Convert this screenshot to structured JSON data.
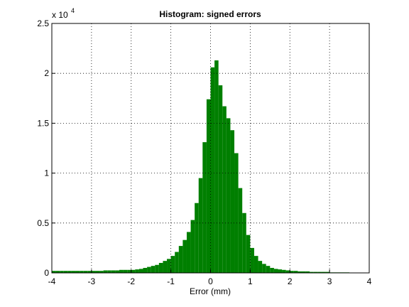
{
  "chart_data": {
    "type": "histogram",
    "title": "Histogram: signed errors",
    "x_label": "Error (mm)",
    "y_multiplier": {
      "text": "x 10",
      "exponent": "4"
    },
    "color": "#007f00",
    "grid": true,
    "xlim": [
      -4,
      4
    ],
    "xticks": [
      -4,
      -3,
      -2,
      -1,
      0,
      1,
      2,
      3,
      4
    ],
    "ylim": [
      0,
      2.5
    ],
    "yticks": [
      0,
      0.5,
      1,
      1.5,
      2,
      2.5
    ],
    "bins": [
      -4.0,
      -3.9,
      -3.8,
      -3.7,
      -3.6,
      -3.5,
      -3.4,
      -3.3,
      -3.2,
      -3.1,
      -3.0,
      -2.9,
      -2.8,
      -2.7,
      -2.6,
      -2.5,
      -2.4,
      -2.3,
      -2.2,
      -2.1,
      -2.0,
      -1.9,
      -1.8,
      -1.7,
      -1.6,
      -1.5,
      -1.4,
      -1.3,
      -1.2,
      -1.1,
      -1.0,
      -0.9,
      -0.8,
      -0.7,
      -0.6,
      -0.5,
      -0.4,
      -0.3,
      -0.2,
      -0.1,
      0.0,
      0.1,
      0.2,
      0.3,
      0.4,
      0.5,
      0.6,
      0.7,
      0.8,
      0.9,
      1.0,
      1.1,
      1.2,
      1.3,
      1.4,
      1.5,
      1.6,
      1.7,
      1.8,
      1.9,
      2.0,
      2.1,
      2.2,
      2.3,
      2.4,
      2.5,
      2.6,
      2.7,
      2.8,
      2.9,
      3.0,
      3.1,
      3.2,
      3.3,
      3.4,
      3.5,
      3.6,
      3.7,
      3.8,
      3.9,
      4.0
    ],
    "values": [
      0.02,
      0.02,
      0.02,
      0.02,
      0.02,
      0.02,
      0.02,
      0.02,
      0.02,
      0.02,
      0.02,
      0.02,
      0.02,
      0.025,
      0.025,
      0.025,
      0.025,
      0.03,
      0.03,
      0.03,
      0.03,
      0.035,
      0.04,
      0.05,
      0.06,
      0.07,
      0.08,
      0.1,
      0.12,
      0.14,
      0.17,
      0.21,
      0.27,
      0.33,
      0.41,
      0.53,
      0.7,
      0.95,
      1.31,
      1.74,
      2.06,
      2.13,
      1.88,
      1.67,
      1.55,
      1.43,
      1.2,
      0.85,
      0.6,
      0.38,
      0.25,
      0.17,
      0.12,
      0.09,
      0.07,
      0.05,
      0.04,
      0.035,
      0.03,
      0.025,
      0.02,
      0.02,
      0.015,
      0.015,
      0.015,
      0.01,
      0.01,
      0.01,
      0.01,
      0.01,
      0.005,
      0.005,
      0.005,
      0.005,
      0.005,
      0.003,
      0.003,
      0.003,
      0.003,
      0.003
    ]
  }
}
